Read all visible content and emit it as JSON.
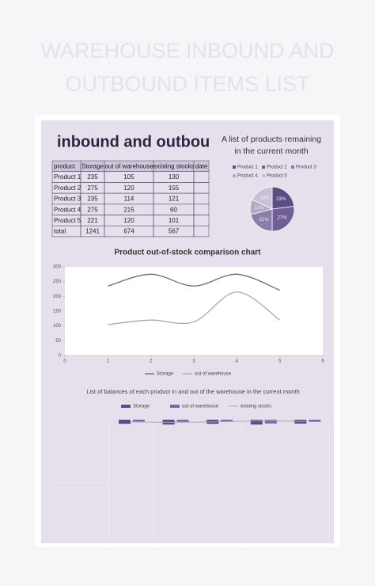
{
  "header": {
    "title_lines": [
      "WAREHOUSE INBOUND AND",
      "OUTBOUND ITEMS LIST"
    ]
  },
  "sheet": {
    "title": "inbound and outbou",
    "table": {
      "columns": [
        "product",
        "Storage",
        "out of warehouse",
        "existing stocks",
        "date"
      ],
      "rows": [
        [
          "Product 1",
          235,
          105,
          130
        ],
        [
          "Product 2",
          275,
          120,
          155
        ],
        [
          "Product 3",
          235,
          114,
          121
        ],
        [
          "Product 4",
          275,
          215,
          60
        ],
        [
          "Product 5",
          221,
          120,
          101
        ],
        [
          "total",
          1241,
          674,
          567
        ]
      ]
    }
  },
  "chart_data": [
    {
      "type": "pie",
      "title_lines": [
        "A list of products remaining",
        "in the current month"
      ],
      "categories": [
        "Product 1",
        "Product 2",
        "Product 3",
        "Product 4",
        "Product 5"
      ],
      "values": [
        23,
        27,
        21,
        11,
        18
      ],
      "value_labels": [
        "23%",
        "27%",
        "21%",
        "11%",
        "18%"
      ],
      "colors": [
        "#5e4c85",
        "#6f5e97",
        "#8c7dab",
        "#b4a9c8",
        "#c9c0da"
      ]
    },
    {
      "type": "line",
      "title": "Product out-of-stock comparison chart",
      "x": [
        1,
        2,
        3,
        4,
        5
      ],
      "xlim": [
        0,
        6
      ],
      "xticks": [
        0,
        1,
        2,
        3,
        4,
        5,
        6
      ],
      "ylim": [
        0,
        300
      ],
      "yticks": [
        0,
        50,
        100,
        150,
        200,
        250,
        300
      ],
      "series": [
        {
          "name": "Storage",
          "color": "#6e6882",
          "values": [
            235,
            275,
            235,
            275,
            221
          ]
        },
        {
          "name": "out of warehouse",
          "color": "#aaa6b6",
          "values": [
            105,
            120,
            114,
            215,
            120
          ]
        }
      ]
    },
    {
      "type": "bar",
      "title": "List of balances of each product in and out of the warehouse in the current month",
      "categories": [
        null,
        null,
        null,
        null,
        null
      ],
      "ylim": [
        0,
        7000
      ],
      "y_inverted": true,
      "series": [
        {
          "name": "Storage",
          "color": "#5e4c85",
          "values": [
            235,
            275,
            235,
            275,
            221
          ]
        },
        {
          "name": "out of warehouse",
          "color": "#7a6aa0",
          "values": [
            105,
            120,
            114,
            215,
            120
          ]
        },
        {
          "name": "existing stocks",
          "color": "#aaa6b6",
          "values": [
            130,
            155,
            121,
            60,
            101
          ],
          "style": "line"
        }
      ]
    }
  ]
}
